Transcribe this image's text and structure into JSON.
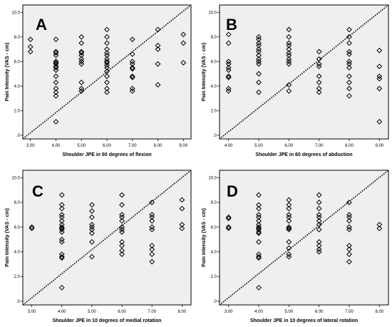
{
  "chart_data": [
    {
      "panel_letter": "A",
      "type": "scatter",
      "xlabel": "Shoulder JPE in 60 degrees of flexion",
      "ylabel": "Pain Intensity (VAS - cm)",
      "xlim": [
        2.7,
        9.3
      ],
      "ylim": [
        -0.3,
        10.6
      ],
      "xticks": [
        3,
        4,
        5,
        6,
        7,
        8,
        9
      ],
      "xtick_labels": [
        "3.00",
        "4.00",
        "5.00",
        "6.00",
        "7.00",
        "8.00",
        "9.00"
      ],
      "yticks": [
        0,
        2,
        4,
        6,
        8,
        10
      ],
      "ytick_labels": [
        ".0",
        "2.0",
        "4.0",
        "6.0",
        "8.0",
        "10.0"
      ],
      "reference_line": [
        [
          2.7,
          -0.3
        ],
        [
          9.3,
          10.6
        ]
      ],
      "points": [
        [
          3,
          7.8
        ],
        [
          3,
          7.2
        ],
        [
          3,
          6.8
        ],
        [
          4,
          7.8
        ],
        [
          4,
          6.8
        ],
        [
          4,
          6.7
        ],
        [
          4,
          6.5
        ],
        [
          4,
          6.0
        ],
        [
          4,
          5.9
        ],
        [
          4,
          5.8
        ],
        [
          4,
          5.6
        ],
        [
          4,
          5.5
        ],
        [
          4,
          5.3
        ],
        [
          4,
          4.8
        ],
        [
          4,
          4.3
        ],
        [
          4,
          3.8
        ],
        [
          4,
          3.5
        ],
        [
          4,
          3.2
        ],
        [
          4,
          1.1
        ],
        [
          5,
          8.0
        ],
        [
          5,
          7.5
        ],
        [
          5,
          6.8
        ],
        [
          5,
          6.7
        ],
        [
          5,
          6.5
        ],
        [
          5,
          6.2
        ],
        [
          5,
          6.0
        ],
        [
          5,
          5.8
        ],
        [
          5,
          4.3
        ],
        [
          5,
          3.8
        ],
        [
          5,
          3.6
        ],
        [
          6,
          8.6
        ],
        [
          6,
          8.0
        ],
        [
          6,
          7.5
        ],
        [
          6,
          7.0
        ],
        [
          6,
          6.7
        ],
        [
          6,
          6.5
        ],
        [
          6,
          6.2
        ],
        [
          6,
          6.0
        ],
        [
          6,
          5.9
        ],
        [
          6,
          5.7
        ],
        [
          6,
          5.5
        ],
        [
          6,
          5.2
        ],
        [
          6,
          4.8
        ],
        [
          6,
          4.3
        ],
        [
          6,
          3.8
        ],
        [
          6,
          3.5
        ],
        [
          7,
          7.8
        ],
        [
          7,
          6.6
        ],
        [
          7,
          6.0
        ],
        [
          7,
          5.8
        ],
        [
          7,
          5.5
        ],
        [
          7,
          5.4
        ],
        [
          7,
          4.8
        ],
        [
          7,
          4.7
        ],
        [
          7,
          3.8
        ],
        [
          7,
          3.6
        ],
        [
          8,
          8.6
        ],
        [
          8,
          7.3
        ],
        [
          8,
          7.0
        ],
        [
          8,
          5.8
        ],
        [
          8,
          4.1
        ],
        [
          9,
          8.2
        ],
        [
          9,
          7.5
        ],
        [
          9,
          5.9
        ]
      ]
    },
    {
      "panel_letter": "B",
      "type": "scatter",
      "xlabel": "Shoulder JPE in 60 degrees of abduction",
      "ylabel": "Pain Intensity (VAS - cm)",
      "xlim": [
        3.7,
        9.3
      ],
      "ylim": [
        -0.3,
        10.6
      ],
      "xticks": [
        4,
        5,
        6,
        7,
        8,
        9
      ],
      "xtick_labels": [
        "4.00",
        "5.00",
        "6.00",
        "7.00",
        "8.00",
        "9.00"
      ],
      "yticks": [
        0,
        2,
        4,
        6,
        8,
        10
      ],
      "ytick_labels": [
        ".0",
        "2.0",
        "4.0",
        "6.0",
        "8.0",
        "10.0"
      ],
      "reference_line": [
        [
          3.7,
          -0.3
        ],
        [
          9.3,
          10.6
        ]
      ],
      "points": [
        [
          4,
          8.2
        ],
        [
          4,
          7.5
        ],
        [
          4,
          6.0
        ],
        [
          4,
          5.8
        ],
        [
          4,
          5.5
        ],
        [
          4,
          5.3
        ],
        [
          4,
          4.8
        ],
        [
          4,
          4.7
        ],
        [
          4,
          3.8
        ],
        [
          4,
          3.6
        ],
        [
          5,
          8.0
        ],
        [
          5,
          7.8
        ],
        [
          5,
          7.5
        ],
        [
          5,
          7.3
        ],
        [
          5,
          7.0
        ],
        [
          5,
          6.8
        ],
        [
          5,
          6.5
        ],
        [
          5,
          6.2
        ],
        [
          5,
          6.0
        ],
        [
          5,
          5.8
        ],
        [
          5,
          5.0
        ],
        [
          5,
          4.3
        ],
        [
          5,
          3.5
        ],
        [
          6,
          8.6
        ],
        [
          6,
          8.0
        ],
        [
          6,
          7.5
        ],
        [
          6,
          7.3
        ],
        [
          6,
          7.0
        ],
        [
          6,
          6.7
        ],
        [
          6,
          6.5
        ],
        [
          6,
          6.2
        ],
        [
          6,
          6.0
        ],
        [
          6,
          5.8
        ],
        [
          6,
          4.1
        ],
        [
          6,
          3.6
        ],
        [
          7,
          6.8
        ],
        [
          7,
          6.2
        ],
        [
          7,
          5.8
        ],
        [
          7,
          5.6
        ],
        [
          7,
          4.8
        ],
        [
          7,
          4.3
        ],
        [
          7,
          3.8
        ],
        [
          7,
          3.5
        ],
        [
          8,
          8.6
        ],
        [
          8,
          8.0
        ],
        [
          8,
          7.5
        ],
        [
          8,
          6.8
        ],
        [
          8,
          6.6
        ],
        [
          8,
          6.0
        ],
        [
          8,
          5.8
        ],
        [
          8,
          5.5
        ],
        [
          8,
          4.8
        ],
        [
          8,
          4.3
        ],
        [
          8,
          3.8
        ],
        [
          8,
          3.2
        ],
        [
          9,
          6.9
        ],
        [
          9,
          5.6
        ],
        [
          9,
          4.8
        ],
        [
          9,
          4.6
        ],
        [
          9,
          3.8
        ],
        [
          9,
          1.1
        ]
      ]
    },
    {
      "panel_letter": "C",
      "type": "scatter",
      "xlabel": "Shoulder JPE in 10 degrees of medial rotation",
      "ylabel": "Pain Intensity (VAS - cm)",
      "xlim": [
        2.7,
        8.3
      ],
      "ylim": [
        -0.3,
        10.6
      ],
      "xticks": [
        3,
        4,
        5,
        6,
        7,
        8
      ],
      "xtick_labels": [
        "3.00",
        "4.00",
        "5.00",
        "6.00",
        "7.00",
        "8.00"
      ],
      "yticks": [
        0,
        2,
        4,
        6,
        8,
        10
      ],
      "ytick_labels": [
        ".0",
        "2.0",
        "4.0",
        "6.0",
        "8.0",
        "10.0"
      ],
      "reference_line": [
        [
          2.7,
          -0.3
        ],
        [
          8.3,
          10.6
        ]
      ],
      "points": [
        [
          3,
          6.0
        ],
        [
          3,
          5.9
        ],
        [
          4,
          8.6
        ],
        [
          4,
          7.8
        ],
        [
          4,
          7.5
        ],
        [
          4,
          7.0
        ],
        [
          4,
          6.8
        ],
        [
          4,
          6.5
        ],
        [
          4,
          6.2
        ],
        [
          4,
          6.0
        ],
        [
          4,
          5.9
        ],
        [
          4,
          5.8
        ],
        [
          4,
          5.6
        ],
        [
          4,
          5.0
        ],
        [
          4,
          4.8
        ],
        [
          4,
          3.8
        ],
        [
          4,
          3.6
        ],
        [
          4,
          3.5
        ],
        [
          4,
          1.1
        ],
        [
          5,
          7.8
        ],
        [
          5,
          7.3
        ],
        [
          5,
          6.8
        ],
        [
          5,
          6.2
        ],
        [
          5,
          6.0
        ],
        [
          5,
          5.8
        ],
        [
          5,
          5.5
        ],
        [
          5,
          4.8
        ],
        [
          5,
          3.6
        ],
        [
          6,
          8.6
        ],
        [
          6,
          7.8
        ],
        [
          6,
          7.0
        ],
        [
          6,
          6.8
        ],
        [
          6,
          6.5
        ],
        [
          6,
          6.0
        ],
        [
          6,
          5.8
        ],
        [
          6,
          5.6
        ],
        [
          6,
          4.8
        ],
        [
          6,
          4.5
        ],
        [
          6,
          4.1
        ],
        [
          6,
          3.8
        ],
        [
          7,
          8.0
        ],
        [
          7,
          7.0
        ],
        [
          7,
          6.8
        ],
        [
          7,
          6.5
        ],
        [
          7,
          6.0
        ],
        [
          7,
          5.8
        ],
        [
          7,
          4.5
        ],
        [
          7,
          4.2
        ],
        [
          7,
          3.8
        ],
        [
          7,
          3.2
        ],
        [
          8,
          8.2
        ],
        [
          8,
          7.5
        ],
        [
          8,
          6.2
        ],
        [
          8,
          5.9
        ]
      ]
    },
    {
      "panel_letter": "D",
      "type": "scatter",
      "xlabel": "Shoulder JPE in 10 degrees of lateral rotation",
      "ylabel": "Pain Intensity (VAS - cm)",
      "xlim": [
        2.7,
        8.3
      ],
      "ylim": [
        -0.3,
        10.6
      ],
      "xticks": [
        3,
        4,
        5,
        6,
        7,
        8
      ],
      "xtick_labels": [
        "3.00",
        "4.00",
        "5.00",
        "6.00",
        "7.00",
        "8.00"
      ],
      "yticks": [
        0,
        2,
        4,
        6,
        8,
        10
      ],
      "ytick_labels": [
        ".0",
        "2.0",
        "4.0",
        "6.0",
        "8.0",
        "10.0"
      ],
      "reference_line": [
        [
          2.7,
          -0.3
        ],
        [
          8.3,
          10.6
        ]
      ],
      "points": [
        [
          3,
          6.8
        ],
        [
          3,
          6.7
        ],
        [
          3,
          6.0
        ],
        [
          3,
          5.9
        ],
        [
          4,
          8.6
        ],
        [
          4,
          7.8
        ],
        [
          4,
          7.5
        ],
        [
          4,
          7.0
        ],
        [
          4,
          6.8
        ],
        [
          4,
          6.5
        ],
        [
          4,
          6.2
        ],
        [
          4,
          6.0
        ],
        [
          4,
          5.9
        ],
        [
          4,
          5.8
        ],
        [
          4,
          5.6
        ],
        [
          4,
          5.5
        ],
        [
          4,
          4.8
        ],
        [
          4,
          3.8
        ],
        [
          4,
          3.6
        ],
        [
          4,
          3.5
        ],
        [
          4,
          1.1
        ],
        [
          5,
          8.2
        ],
        [
          5,
          7.8
        ],
        [
          5,
          7.5
        ],
        [
          5,
          7.0
        ],
        [
          5,
          6.8
        ],
        [
          5,
          6.5
        ],
        [
          5,
          6.0
        ],
        [
          5,
          5.9
        ],
        [
          5,
          5.8
        ],
        [
          5,
          4.8
        ],
        [
          5,
          4.3
        ],
        [
          5,
          3.8
        ],
        [
          5,
          3.6
        ],
        [
          6,
          8.6
        ],
        [
          6,
          8.0
        ],
        [
          6,
          7.5
        ],
        [
          6,
          7.0
        ],
        [
          6,
          6.8
        ],
        [
          6,
          6.5
        ],
        [
          6,
          6.2
        ],
        [
          6,
          5.8
        ],
        [
          6,
          4.8
        ],
        [
          6,
          4.5
        ],
        [
          6,
          4.2
        ],
        [
          6,
          4.0
        ],
        [
          7,
          8.0
        ],
        [
          7,
          7.0
        ],
        [
          7,
          6.8
        ],
        [
          7,
          6.5
        ],
        [
          7,
          6.0
        ],
        [
          7,
          5.8
        ],
        [
          7,
          4.5
        ],
        [
          7,
          4.2
        ],
        [
          7,
          3.8
        ],
        [
          7,
          3.2
        ],
        [
          8,
          6.2
        ],
        [
          8,
          5.9
        ]
      ]
    }
  ]
}
